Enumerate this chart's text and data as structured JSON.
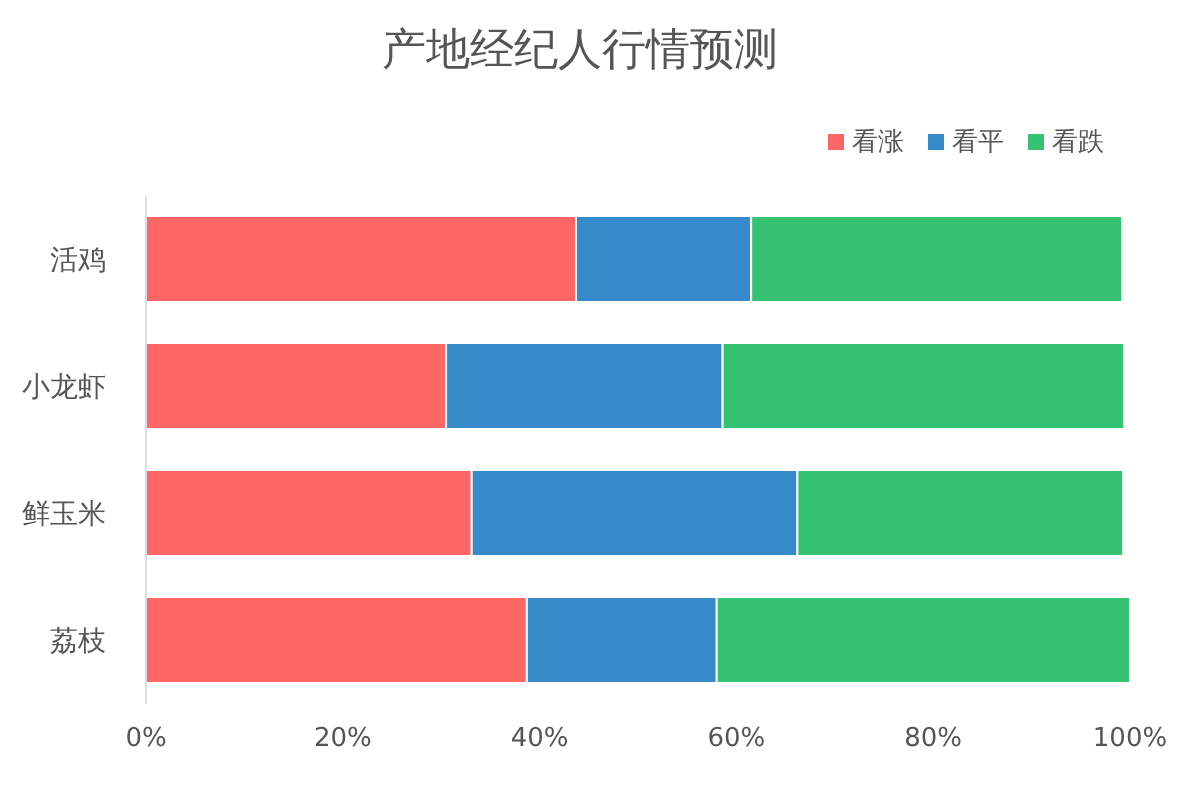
{
  "chart_data": {
    "type": "bar",
    "title": "产地经纪人行情预测",
    "orientation": "horizontal",
    "stacked": true,
    "legend": "top right",
    "categories": [
      "活鸡",
      "小龙虾",
      "鲜玉米",
      "荔枝"
    ],
    "series": [
      {
        "name": "看涨",
        "color": "#ff6666",
        "values": [
          43.7,
          30.5,
          33.1,
          38.7
        ]
      },
      {
        "name": "看平",
        "color": "#368ac9",
        "values": [
          17.8,
          28.1,
          33.1,
          19.3
        ]
      },
      {
        "name": "看跌",
        "color": "#35c273",
        "values": [
          37.7,
          40.8,
          33.1,
          42.0
        ]
      }
    ],
    "xlim": [
      0,
      100
    ],
    "xticks": [
      {
        "value": 0,
        "label": "0%"
      },
      {
        "value": 20,
        "label": "20%"
      },
      {
        "value": 40,
        "label": "40%"
      },
      {
        "value": 60,
        "label": "60%"
      },
      {
        "value": 80,
        "label": "80%"
      },
      {
        "value": 100,
        "label": "100%"
      }
    ]
  }
}
